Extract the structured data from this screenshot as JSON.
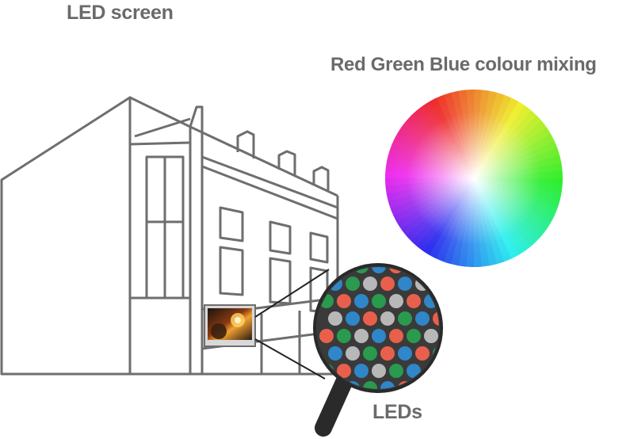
{
  "labels": {
    "led_screen": "LED screen",
    "rgb_mixing": "Red Green Blue colour mixing",
    "leds": "LEDs"
  },
  "colors": {
    "outline": "#6e6e6e",
    "text": "#6a6a6a",
    "led_red": "#e8604c",
    "led_green": "#2a9a4e",
    "led_blue": "#2f86c8",
    "led_white": "#b8b8b8",
    "magnifier_bg": "#3a3a3a"
  },
  "icons": {
    "building": "building-outline-icon",
    "screen": "led-screen-icon",
    "magnifier": "magnifying-glass-icon",
    "colour_wheel": "colour-wheel-icon"
  }
}
